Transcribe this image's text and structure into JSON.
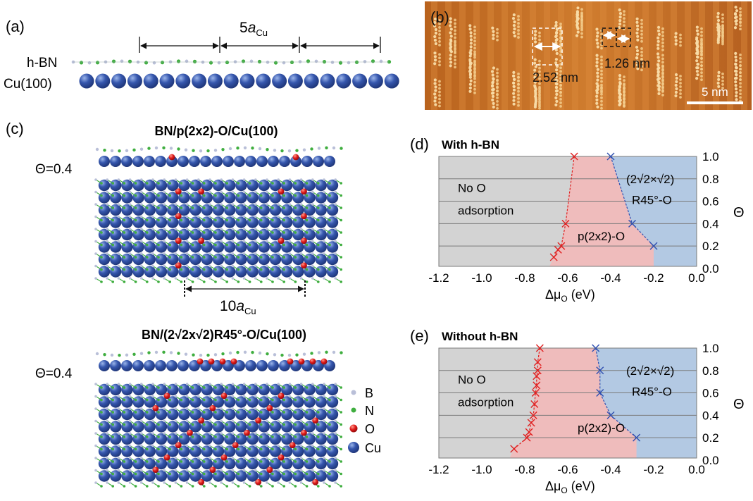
{
  "panels": {
    "a": {
      "label": "(a)",
      "hbn": "h-BN",
      "cu": "Cu(100)",
      "period": "5",
      "period_sub": "Cu",
      "period_var": "a"
    },
    "b": {
      "label": "(b)",
      "d1": "2.52 nm",
      "d2": "1.26 nm",
      "scale": "5 nm"
    },
    "c": {
      "label": "(c)",
      "title1": "BN/p(2x2)-O/Cu(100)",
      "title2": "BN/(2√2x√2)R45°-O/Cu(100)",
      "theta1": "Θ=0.4",
      "theta2": "Θ=0.4",
      "period": "10",
      "period_var": "a",
      "period_sub": "Cu",
      "legend": [
        "B",
        "N",
        "O",
        "Cu"
      ]
    },
    "d": {
      "label": "(d)",
      "title": "With h-BN"
    },
    "e": {
      "label": "(e)",
      "title": "Without h-BN"
    }
  },
  "colors": {
    "B": "#b9bfd8",
    "N": "#3fae3f",
    "O": "#e01a1a",
    "Cu": "#2b4fa6",
    "gray_region": "#d3d3d3",
    "pink_region": "#efbcbc",
    "blue_region": "#b3c9e3",
    "red_series": "#e02020",
    "blue_series": "#2f4fb0",
    "stm": "#c97428"
  },
  "chart_data": [
    {
      "type": "area",
      "panel": "d",
      "title": "With h-BN",
      "xlabel": "Δμ",
      "xlabel_sub": "O",
      "xlabel_unit": "(eV)",
      "ylabel": "Θ",
      "xlim": [
        -1.2,
        0.0
      ],
      "ylim": [
        0.0,
        1.0
      ],
      "x_ticks": [
        "-1.2",
        "-1.0",
        "-0.8",
        "-0.6",
        "-0.4",
        "-0.2",
        "0.0"
      ],
      "y_ticks": [
        "0.0",
        "0.2",
        "0.4",
        "0.6",
        "0.8",
        "1.0"
      ],
      "grid": true,
      "regions": [
        {
          "name": "No O adsorption",
          "lines": [
            "No O",
            "adsorption"
          ]
        },
        {
          "name": "p(2x2)-O",
          "lines": [
            "p(2x2)-O"
          ]
        },
        {
          "name": "(2√2×√2) R45°-O",
          "lines": [
            "(2√2×√2)",
            "R45°-O"
          ]
        }
      ],
      "series": [
        {
          "color": "red",
          "points": [
            [
              -0.57,
              1.0
            ],
            [
              -0.61,
              0.4
            ],
            [
              -0.63,
              0.2
            ],
            [
              -0.645,
              0.167
            ],
            [
              -0.665,
              0.1
            ]
          ]
        },
        {
          "color": "blue",
          "points": [
            [
              -0.4,
              1.0
            ],
            [
              -0.3,
              0.4
            ],
            [
              -0.2,
              0.2
            ]
          ]
        }
      ]
    },
    {
      "type": "area",
      "panel": "e",
      "title": "Without h-BN",
      "xlabel": "Δμ",
      "xlabel_sub": "O",
      "xlabel_unit": "(eV)",
      "ylabel": "Θ",
      "xlim": [
        -1.2,
        0.0
      ],
      "ylim": [
        0.0,
        1.0
      ],
      "x_ticks": [
        "-1.2",
        "-1.0",
        "-0.8",
        "-0.6",
        "-0.4",
        "-0.2",
        "0.0"
      ],
      "y_ticks": [
        "0.0",
        "0.2",
        "0.4",
        "0.6",
        "0.8",
        "1.0"
      ],
      "grid": true,
      "regions": [
        {
          "name": "No O adsorption",
          "lines": [
            "No O",
            "adsorption"
          ]
        },
        {
          "name": "p(2x2)-O",
          "lines": [
            "p(2x2)-O"
          ]
        },
        {
          "name": "(2√2×√2) R45°-O",
          "lines": [
            "(2√2×√2)",
            "R45°-O"
          ]
        }
      ],
      "series": [
        {
          "color": "red",
          "points": [
            [
              -0.73,
              1.0
            ],
            [
              -0.74,
              0.875
            ],
            [
              -0.74,
              0.8
            ],
            [
              -0.745,
              0.75
            ],
            [
              -0.745,
              0.667
            ],
            [
              -0.75,
              0.6
            ],
            [
              -0.755,
              0.5
            ],
            [
              -0.76,
              0.4
            ],
            [
              -0.77,
              0.333
            ],
            [
              -0.78,
              0.25
            ],
            [
              -0.79,
              0.2
            ],
            [
              -0.85,
              0.1
            ]
          ]
        },
        {
          "color": "blue",
          "points": [
            [
              -0.47,
              1.0
            ],
            [
              -0.45,
              0.8
            ],
            [
              -0.45,
              0.6
            ],
            [
              -0.4,
              0.4
            ],
            [
              -0.28,
              0.2
            ]
          ]
        }
      ]
    }
  ]
}
